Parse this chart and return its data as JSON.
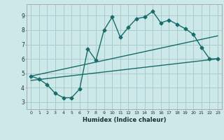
{
  "xlabel": "Humidex (Indice chaleur)",
  "ylabel": "",
  "bg_color": "#cce8e8",
  "grid_color": "#aacccc",
  "line_color": "#1a6b6b",
  "xlim": [
    -0.5,
    23.5
  ],
  "ylim": [
    2.5,
    9.8
  ],
  "xticks": [
    0,
    1,
    2,
    3,
    4,
    5,
    6,
    7,
    8,
    9,
    10,
    11,
    12,
    13,
    14,
    15,
    16,
    17,
    18,
    19,
    20,
    21,
    22,
    23
  ],
  "yticks": [
    3,
    4,
    5,
    6,
    7,
    8,
    9
  ],
  "line1_x": [
    0,
    1,
    2,
    3,
    4,
    5,
    6,
    7,
    8,
    9,
    10,
    11,
    12,
    13,
    14,
    15,
    16,
    17,
    18,
    19,
    20,
    21,
    22,
    23
  ],
  "line1_y": [
    4.8,
    4.6,
    4.2,
    3.6,
    3.3,
    3.3,
    3.9,
    6.7,
    5.9,
    8.0,
    8.9,
    7.5,
    8.2,
    8.8,
    8.9,
    9.3,
    8.5,
    8.7,
    8.4,
    8.1,
    7.7,
    6.8,
    6.0,
    6.0
  ],
  "line2_x": [
    0,
    23
  ],
  "line2_y": [
    4.8,
    7.6
  ],
  "line3_x": [
    0,
    23
  ],
  "line3_y": [
    4.5,
    6.0
  ],
  "marker_size": 2.5,
  "linewidth": 1.0
}
